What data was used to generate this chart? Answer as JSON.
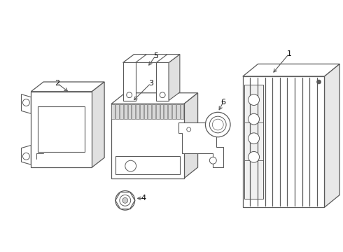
{
  "background_color": "#ffffff",
  "line_color": "#5a5a5a",
  "label_color": "#000000",
  "fig_width": 4.9,
  "fig_height": 3.6,
  "dpi": 100
}
